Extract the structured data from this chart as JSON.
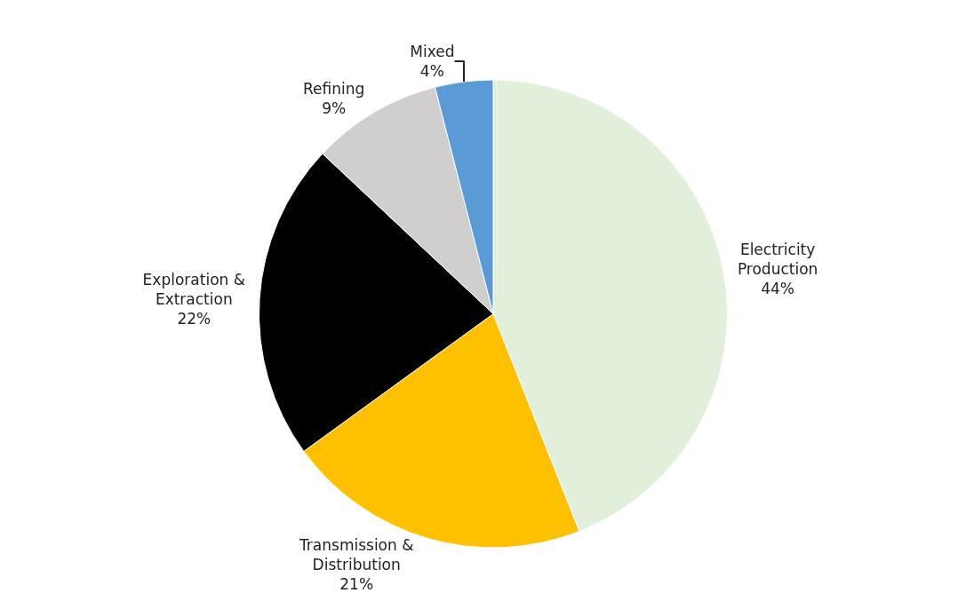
{
  "chart_data": {
    "type": "pie",
    "categories": [
      "Electricity Production",
      "Transmission & Distribution",
      "Exploration & Extraction",
      "Refining",
      "Mixed"
    ],
    "values": [
      44,
      21,
      22,
      9,
      4
    ],
    "value_labels": [
      "44%",
      "21%",
      "22%",
      "9%",
      "4%"
    ],
    "colors": [
      "#e2efda",
      "#ffc000",
      "#000000",
      "#d0cece",
      "#5b9bd5"
    ],
    "legend": false
  }
}
